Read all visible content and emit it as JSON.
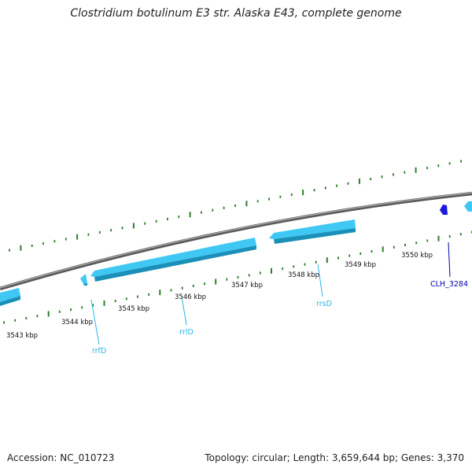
{
  "title": "Clostridium botulinum E3 str. Alaska E43, complete genome",
  "footer": {
    "accession": "Accession: NC_010723",
    "summary": "Topology: circular; Length: 3,659,644 bp; Genes: 3,370"
  },
  "colors": {
    "backbone": "#7a7a7a",
    "tick": "#2e7d2e",
    "rrna": "#3fc8f4",
    "rrna_dark": "#1a8fb8",
    "cds": "#1a1adb",
    "cds_label": "#0000aa",
    "rrna_label": "#29b6e8"
  },
  "map": {
    "tick_labels": [
      "3543 kbp",
      "3544 kbp",
      "3545 kbp",
      "3546 kbp",
      "3547 kbp",
      "3548 kbp",
      "3549 kbp",
      "3550 kbp"
    ],
    "genes": [
      {
        "name": "rrfD",
        "type": "rRNA"
      },
      {
        "name": "rrlD",
        "type": "rRNA"
      },
      {
        "name": "rrsD",
        "type": "rRNA"
      },
      {
        "name": "CLH_3284",
        "type": "CDS"
      }
    ]
  }
}
